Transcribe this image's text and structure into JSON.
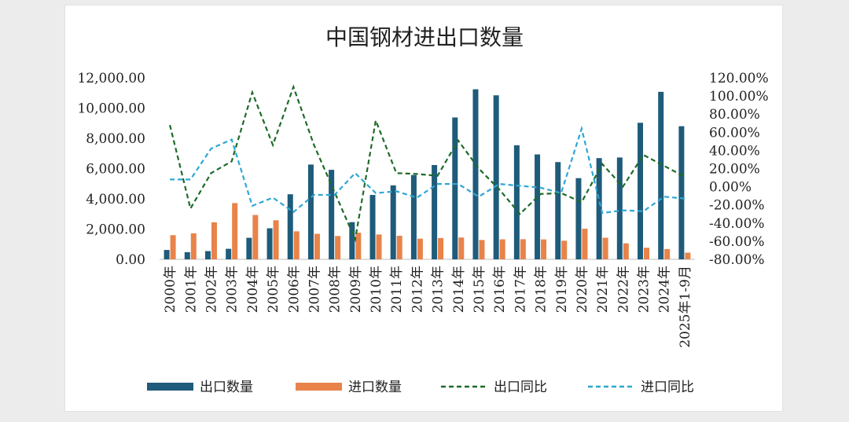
{
  "chart_data": {
    "type": "bar",
    "title": "中国钢材进出口数量",
    "categories": [
      "2000年",
      "2001年",
      "2002年",
      "2003年",
      "2004年",
      "2005年",
      "2006年",
      "2007年",
      "2008年",
      "2009年",
      "2010年",
      "2011年",
      "2012年",
      "2013年",
      "2014年",
      "2015年",
      "2016年",
      "2017年",
      "2018年",
      "2019年",
      "2020年",
      "2021年",
      "2022年",
      "2023年",
      "2024年",
      "2025年1-9月"
    ],
    "y_left": {
      "min": 0,
      "max": 12000,
      "step": 2000,
      "tick_labels": [
        "0.00",
        "2,000.00",
        "4,000.00",
        "6,000.00",
        "8,000.00",
        "10,000.00",
        "12,000.00"
      ]
    },
    "y_right": {
      "min": -80,
      "max": 120,
      "step": 20,
      "tick_labels": [
        "-80.00%",
        "-60.00%",
        "-40.00%",
        "-20.00%",
        "0.00%",
        "20.00%",
        "40.00%",
        "60.00%",
        "80.00%",
        "100.00%",
        "120.00%"
      ]
    },
    "series": [
      {
        "name": "出口数量",
        "type": "bar",
        "axis": "left",
        "color": "#1f5b7a",
        "values": [
          620,
          474,
          545,
          696,
          1423,
          2052,
          4301,
          6265,
          5918,
          2460,
          4256,
          4888,
          5573,
          6234,
          9378,
          11240,
          10843,
          7541,
          6934,
          6429,
          5367,
          6690,
          6732,
          9026,
          11072,
          8800
        ]
      },
      {
        "name": "进口数量",
        "type": "bar",
        "axis": "left",
        "color": "#e8834a",
        "values": [
          1596,
          1722,
          2449,
          3717,
          2930,
          2582,
          1851,
          1687,
          1543,
          1763,
          1643,
          1558,
          1366,
          1408,
          1443,
          1278,
          1322,
          1330,
          1317,
          1230,
          2023,
          1427,
          1057,
          765,
          681,
          440
        ]
      },
      {
        "name": "出口同比",
        "type": "line",
        "axis": "right",
        "color": "#1e6b28",
        "dash": "6,4",
        "values": [
          68,
          -24,
          15,
          28,
          104,
          46,
          110,
          46,
          -6,
          -58,
          73,
          15,
          14,
          12,
          51,
          20,
          -3,
          -30,
          -8,
          -7,
          -17,
          25,
          0,
          35,
          23,
          11
        ]
      },
      {
        "name": "进口同比",
        "type": "line",
        "axis": "right",
        "color": "#2ea7d4",
        "dash": "6,4",
        "values": [
          8,
          8,
          42,
          52,
          -21,
          -12,
          -28,
          -9,
          -9,
          15,
          -7,
          -5,
          -12,
          3,
          3,
          -11,
          3,
          1,
          -1,
          -7,
          64,
          -29,
          -26,
          -27,
          -11,
          -13
        ]
      }
    ],
    "legend_position": "bottom"
  }
}
